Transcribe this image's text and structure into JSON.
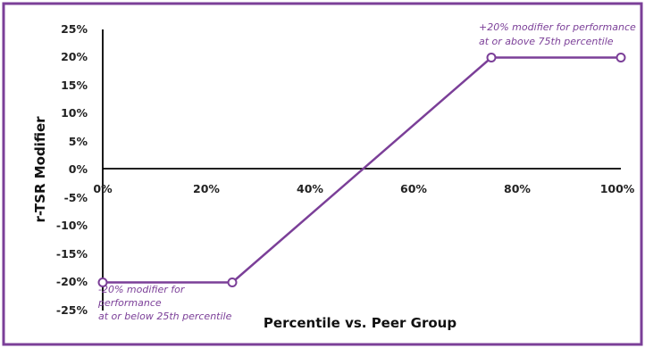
{
  "chart_data": {
    "type": "line",
    "xlabel": "Percentile vs. Peer Group",
    "ylabel": "r-TSR Modifier",
    "xlim": [
      0,
      100
    ],
    "ylim": [
      -25,
      25
    ],
    "x_ticks": [
      "0%",
      "20%",
      "40%",
      "60%",
      "80%",
      "100%"
    ],
    "y_ticks": [
      "25%",
      "20%",
      "15%",
      "10%",
      "5%",
      "0%",
      "-5%",
      "-10%",
      "-15%",
      "-20%",
      "-25%"
    ],
    "series": [
      {
        "x": [
          0,
          25,
          75,
          100
        ],
        "y": [
          -20,
          -20,
          20,
          20
        ]
      }
    ],
    "annotations": {
      "upper_line1": "+20% modifier for performance",
      "upper_line2": "at or above 75th percentile",
      "lower_line1": "-20% modifier for",
      "lower_line2": "performance",
      "lower_line3": "at or below 25th percentile"
    },
    "colors": {
      "border": "#7b3f98",
      "series": "#7b3f98",
      "annotation": "#7b3f98",
      "axis": "#000000"
    }
  }
}
